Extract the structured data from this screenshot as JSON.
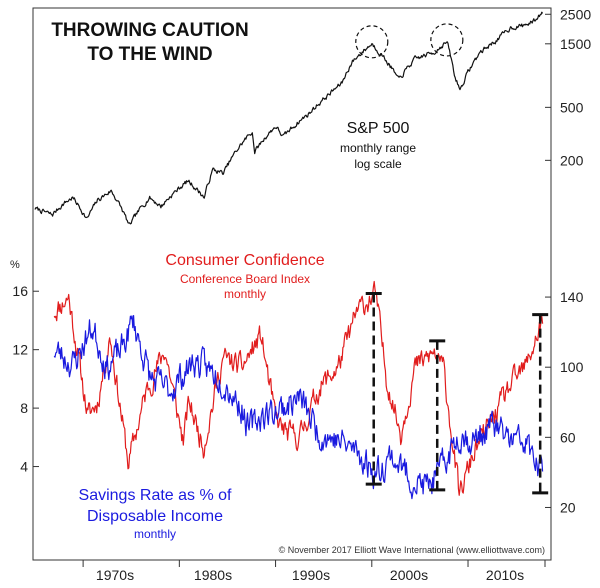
{
  "chart_data": {
    "type": "line",
    "title_lines": [
      "THROWING CAUTION",
      "TO THE WIND"
    ],
    "x_ticks": [
      "1970s",
      "1980s",
      "1990s",
      "2000s",
      "2010s"
    ],
    "x_range": [
      1965,
      2018
    ],
    "copyright": "© November 2017 Elliott Wave International (www.elliottwave.com)",
    "sp500": {
      "name": "S&P 500",
      "labels": [
        "S&P 500",
        "monthly range",
        "log scale"
      ],
      "axis_ticks": [
        "2500",
        "1500",
        "500",
        "200"
      ],
      "axis_tick_values": [
        2500,
        1500,
        500,
        200
      ],
      "range": [
        55,
        2600
      ],
      "x": [
        1965.0,
        1966.8,
        1968.0,
        1968.9,
        1970.4,
        1971.5,
        1972.9,
        1974.8,
        1976.9,
        1978.1,
        1980.9,
        1982.6,
        1983.5,
        1984.6,
        1987.6,
        1987.8,
        1990.0,
        1990.8,
        1993.5,
        1995.5,
        1996.9,
        1998.0,
        2000.0,
        2000.8,
        2002.8,
        2004.5,
        2006.5,
        2007.8,
        2008.6,
        2009.2,
        2011.3,
        2013.0,
        2014.5,
        2015.7,
        2016.8,
        2017.8
      ],
      "values": [
        87,
        78,
        95,
        105,
        72,
        100,
        118,
        64,
        105,
        90,
        140,
        105,
        170,
        160,
        330,
        230,
        360,
        300,
        450,
        620,
        760,
        1100,
        1500,
        1300,
        800,
        1150,
        1300,
        1550,
        850,
        680,
        1300,
        1600,
        2000,
        2050,
        2200,
        2600
      ]
    },
    "consumer_confidence": {
      "name": "Consumer Confidence",
      "labels": [
        "Consumer Confidence",
        "Conference Board Index",
        "monthly"
      ],
      "axis_ticks": [
        "140",
        "100",
        "60",
        "20"
      ],
      "axis_tick_values": [
        140,
        100,
        60,
        20
      ],
      "range": [
        10,
        160
      ],
      "x": [
        1967.0,
        1968.5,
        1970.5,
        1971.5,
        1972.8,
        1974.7,
        1976.5,
        1978.5,
        1980.4,
        1981.0,
        1982.5,
        1984.5,
        1986.5,
        1988.5,
        1990.0,
        1991.2,
        1992.5,
        1994.5,
        1996.5,
        1998.5,
        2000.4,
        2001.5,
        2003.0,
        2004.5,
        2006.5,
        2007.5,
        2009.1,
        2010.5,
        2012.5,
        2014.5,
        2016.0,
        2017.8
      ],
      "values": [
        132,
        140,
        72,
        80,
        118,
        45,
        85,
        110,
        58,
        80,
        55,
        105,
        100,
        118,
        70,
        62,
        60,
        88,
        100,
        132,
        142,
        95,
        62,
        100,
        108,
        98,
        26,
        50,
        70,
        90,
        100,
        128
      ]
    },
    "savings_rate": {
      "name": "Savings Rate as % of Disposable Income",
      "labels": [
        "Savings Rate as % of",
        "Disposable Income",
        "monthly"
      ],
      "axis_unit": "%",
      "axis_ticks": [
        "16",
        "12",
        "8",
        "4"
      ],
      "axis_tick_values": [
        16,
        12,
        8,
        4
      ],
      "range": [
        0,
        18
      ],
      "x": [
        1967.0,
        1969.0,
        1970.5,
        1971.0,
        1972.5,
        1974.0,
        1975.2,
        1977.0,
        1979.0,
        1981.5,
        1982.6,
        1984.5,
        1986.5,
        1987.2,
        1988.5,
        1990.0,
        1992.5,
        1994.5,
        1996.5,
        1998.5,
        2000.4,
        2002.0,
        2004.0,
        2005.6,
        2006.8,
        2008.0,
        2009.1,
        2010.5,
        2012.5,
        2014.5,
        2016.0,
        2017.8
      ],
      "values": [
        12,
        11,
        13,
        13.5,
        10.8,
        12,
        14,
        10,
        9.2,
        11.2,
        10.8,
        10,
        8,
        6.5,
        7.5,
        7.8,
        8.7,
        6.3,
        5.8,
        5,
        3.5,
        4.8,
        3.2,
        2.6,
        3.3,
        4.8,
        6.3,
        5.7,
        6.8,
        5.8,
        5.6,
        3.2
      ]
    },
    "highlights": [
      {
        "year": 2000.2,
        "confidence": 142,
        "savings": 2.8
      },
      {
        "year": 2006.8,
        "confidence": 115,
        "savings": 2.4
      },
      {
        "year": 2017.5,
        "confidence": 130,
        "savings": 2.2
      }
    ],
    "circled_tops": [
      2000.0,
      2007.8
    ]
  }
}
